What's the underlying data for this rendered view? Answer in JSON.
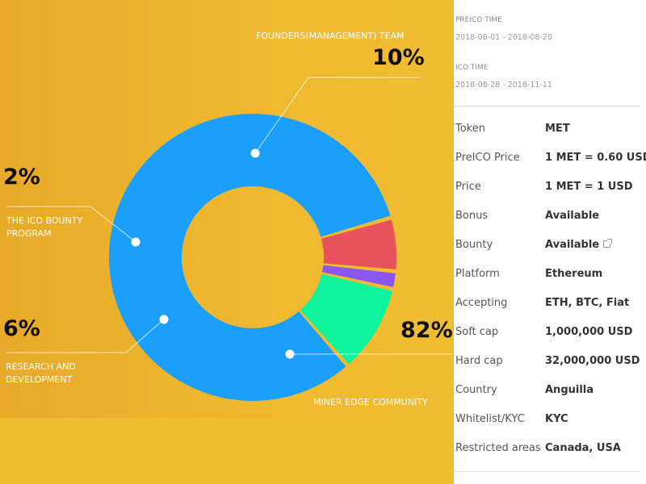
{
  "chart_data": {
    "type": "pie",
    "categories": [
      "FOUNDERS(MANAGEMENT) TEAM",
      "THE ICO BOUNTY PROGRAM",
      "RESEARCH AND DEVELOPMENT",
      "MINER EDGE COMMUNITY"
    ],
    "values": [
      10,
      2,
      6,
      82
    ],
    "colors": [
      "#0cf59c",
      "#8a57f3",
      "#e8525a",
      "#1aa0fb"
    ],
    "percent_labels": [
      "10%",
      "2%",
      "6%",
      "82%"
    ],
    "label_lines": {
      "founders": [
        "FOUNDERS(MANAGEMENT) TEAM"
      ],
      "bounty": [
        "THE ICO BOUNTY",
        "PROGRAM"
      ],
      "research": [
        "RESEARCH AND",
        "DEVELOPMENT"
      ],
      "miner": [
        "MINER EDGE COMMUNITY"
      ]
    }
  },
  "ico": {
    "preico_label": "PREICO TIME",
    "preico_dates": "2018-08-01 - 2018-08-20",
    "ico_label": "ICO TIME",
    "ico_dates": "2018-08-28 - 2018-11-11"
  },
  "details": [
    {
      "key": "Token",
      "value": "MET"
    },
    {
      "key": "PreICO Price",
      "value": "1 MET = 0.60 USD"
    },
    {
      "key": "Price",
      "value": "1 MET = 1 USD"
    },
    {
      "key": "Bonus",
      "value": "Available"
    },
    {
      "key": "Bounty",
      "value": "Available"
    },
    {
      "key": "Platform",
      "value": "Ethereum"
    },
    {
      "key": "Accepting",
      "value": "ETH, BTC, Fiat"
    },
    {
      "key": "Soft cap",
      "value": "1,000,000 USD"
    },
    {
      "key": "Hard cap",
      "value": "32,000,000 USD"
    },
    {
      "key": "Country",
      "value": "Anguilla"
    },
    {
      "key": "Whitelist/KYC",
      "value": "KYC"
    },
    {
      "key": "Restricted areas",
      "value": "Canada, USA"
    }
  ],
  "icons": {
    "bounty_link": "external-link-icon"
  }
}
